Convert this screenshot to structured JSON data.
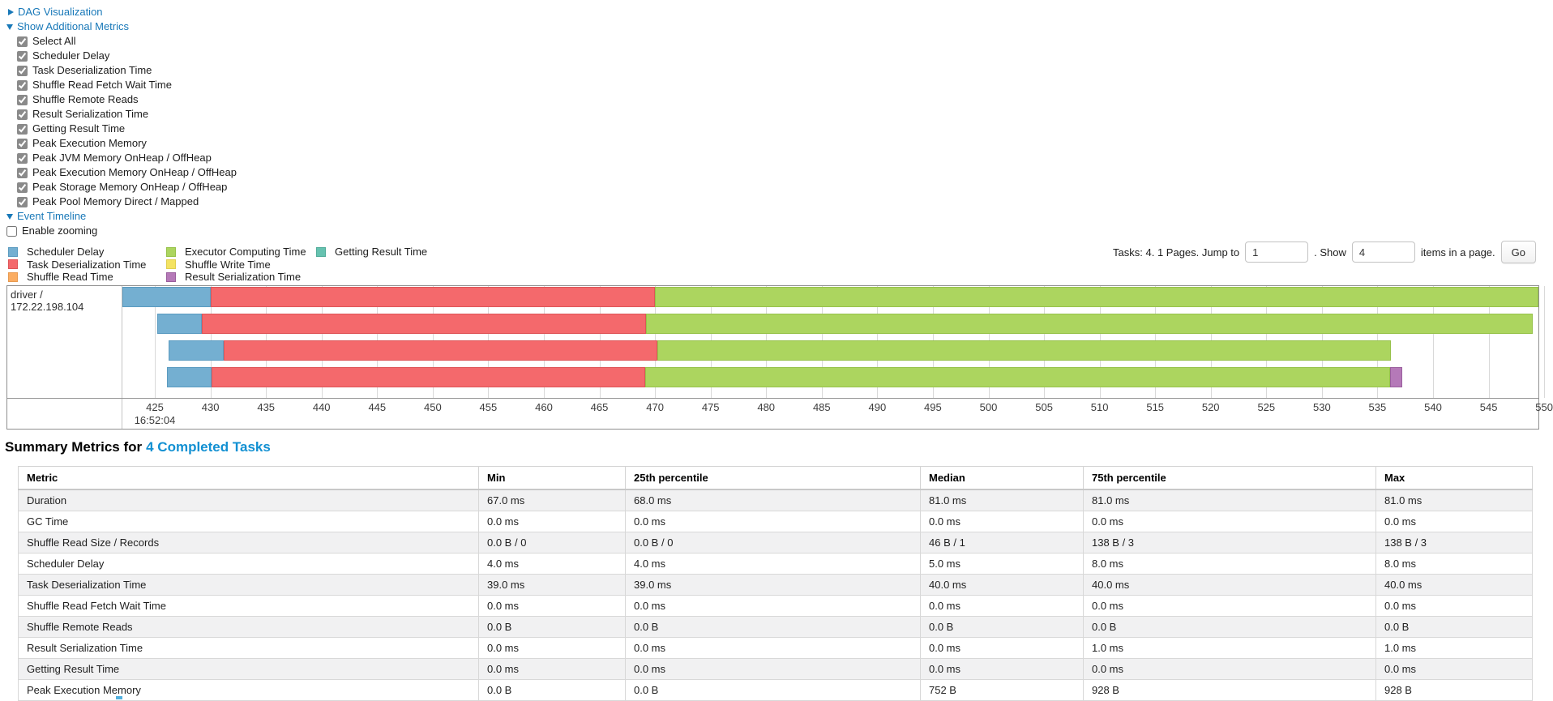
{
  "controls": {
    "dag_toggle": {
      "label": "DAG Visualization",
      "expanded": false
    },
    "metrics_toggle": {
      "label": "Show Additional Metrics",
      "expanded": true
    },
    "metric_checkboxes": [
      {
        "label": "Select All",
        "checked": true
      },
      {
        "label": "Scheduler Delay",
        "checked": true
      },
      {
        "label": "Task Deserialization Time",
        "checked": true
      },
      {
        "label": "Shuffle Read Fetch Wait Time",
        "checked": true
      },
      {
        "label": "Shuffle Remote Reads",
        "checked": true
      },
      {
        "label": "Result Serialization Time",
        "checked": true
      },
      {
        "label": "Getting Result Time",
        "checked": true
      },
      {
        "label": "Peak Execution Memory",
        "checked": true
      },
      {
        "label": "Peak JVM Memory OnHeap / OffHeap",
        "checked": true
      },
      {
        "label": "Peak Execution Memory OnHeap / OffHeap",
        "checked": true
      },
      {
        "label": "Peak Storage Memory OnHeap / OffHeap",
        "checked": true
      },
      {
        "label": "Peak Pool Memory Direct / Mapped",
        "checked": true
      }
    ],
    "timeline_toggle": {
      "label": "Event Timeline",
      "expanded": true
    },
    "enable_zooming": {
      "label": "Enable zooming",
      "checked": false
    }
  },
  "pagination": {
    "tasks_text": "Tasks: 4. 1 Pages. Jump to",
    "jump_value": "1",
    "show_text": ". Show",
    "show_value": "4",
    "items_text": "items in a page.",
    "go_label": "Go"
  },
  "chart_data": {
    "type": "timeline",
    "title": "Event Timeline",
    "group_label": "driver / 172.22.198.104",
    "axis": {
      "unit": "ms within second",
      "time_base": "16:52:04",
      "min": 422.08,
      "max": 549.48,
      "ticks": [
        425,
        430,
        435,
        440,
        445,
        450,
        455,
        460,
        465,
        470,
        475,
        480,
        485,
        490,
        495,
        500,
        505,
        510,
        515,
        520,
        525,
        530,
        535,
        540,
        545,
        550
      ]
    },
    "palette": {
      "scheduler_delay": {
        "label": "Scheduler Delay",
        "fill": "#74AFD1",
        "border": "#5B9BC0"
      },
      "task_deserialization": {
        "label": "Task Deserialization Time",
        "fill": "#F4696C",
        "border": "#DE5558"
      },
      "shuffle_read": {
        "label": "Shuffle Read Time",
        "fill": "#FBAD62",
        "border": "#E89A50"
      },
      "executor_computing": {
        "label": "Executor Computing Time",
        "fill": "#ACD55F",
        "border": "#97C24B"
      },
      "shuffle_write": {
        "label": "Shuffle Write Time",
        "fill": "#F4E362",
        "border": "#E0CF50"
      },
      "result_serialization": {
        "label": "Result Serialization Time",
        "fill": "#B579B8",
        "border": "#9A5F9D"
      },
      "getting_result": {
        "label": "Getting Result Time",
        "fill": "#66C2B0",
        "border": "#52AD9B"
      }
    },
    "legend_columns": [
      [
        "scheduler_delay",
        "task_deserialization",
        "shuffle_read"
      ],
      [
        "executor_computing",
        "shuffle_write",
        "result_serialization"
      ],
      [
        "getting_result"
      ]
    ],
    "tasks": [
      {
        "segments": [
          {
            "type": "scheduler_delay",
            "start": 422.0,
            "end": 430.0
          },
          {
            "type": "task_deserialization",
            "start": 430.0,
            "end": 470.0
          },
          {
            "type": "executor_computing",
            "start": 470.0,
            "end": 549.5
          }
        ]
      },
      {
        "segments": [
          {
            "type": "scheduler_delay",
            "start": 425.2,
            "end": 429.2
          },
          {
            "type": "task_deserialization",
            "start": 429.2,
            "end": 469.2
          },
          {
            "type": "executor_computing",
            "start": 469.2,
            "end": 549.0
          }
        ]
      },
      {
        "segments": [
          {
            "type": "scheduler_delay",
            "start": 426.2,
            "end": 431.2
          },
          {
            "type": "task_deserialization",
            "start": 431.2,
            "end": 470.2
          },
          {
            "type": "executor_computing",
            "start": 470.2,
            "end": 536.2
          }
        ]
      },
      {
        "segments": [
          {
            "type": "scheduler_delay",
            "start": 426.1,
            "end": 430.1
          },
          {
            "type": "task_deserialization",
            "start": 430.1,
            "end": 469.1
          },
          {
            "type": "executor_computing",
            "start": 469.1,
            "end": 536.1
          },
          {
            "type": "result_serialization",
            "start": 536.1,
            "end": 537.2
          }
        ]
      }
    ]
  },
  "summary": {
    "heading_prefix": "Summary Metrics for",
    "heading_link": "4 Completed Tasks",
    "table": {
      "headers": [
        "Metric",
        "Min",
        "25th percentile",
        "Median",
        "75th percentile",
        "Max"
      ],
      "rows": [
        {
          "metric": "Duration",
          "values": [
            "67.0 ms",
            "68.0 ms",
            "81.0 ms",
            "81.0 ms",
            "81.0 ms"
          ]
        },
        {
          "metric": "GC Time",
          "values": [
            "0.0 ms",
            "0.0 ms",
            "0.0 ms",
            "0.0 ms",
            "0.0 ms"
          ]
        },
        {
          "metric": "Shuffle Read Size / Records",
          "values": [
            "0.0 B / 0",
            "0.0 B / 0",
            "46 B / 1",
            "138 B / 3",
            "138 B / 3"
          ]
        },
        {
          "metric": "Scheduler Delay",
          "values": [
            "4.0 ms",
            "4.0 ms",
            "5.0 ms",
            "8.0 ms",
            "8.0 ms"
          ]
        },
        {
          "metric": "Task Deserialization Time",
          "values": [
            "39.0 ms",
            "39.0 ms",
            "40.0 ms",
            "40.0 ms",
            "40.0 ms"
          ]
        },
        {
          "metric": "Shuffle Read Fetch Wait Time",
          "values": [
            "0.0 ms",
            "0.0 ms",
            "0.0 ms",
            "0.0 ms",
            "0.0 ms"
          ]
        },
        {
          "metric": "Shuffle Remote Reads",
          "values": [
            "0.0 B",
            "0.0 B",
            "0.0 B",
            "0.0 B",
            "0.0 B"
          ]
        },
        {
          "metric": "Result Serialization Time",
          "values": [
            "0.0 ms",
            "0.0 ms",
            "0.0 ms",
            "1.0 ms",
            "1.0 ms"
          ]
        },
        {
          "metric": "Getting Result Time",
          "values": [
            "0.0 ms",
            "0.0 ms",
            "0.0 ms",
            "0.0 ms",
            "0.0 ms"
          ]
        },
        {
          "metric": "Peak Execution Memory",
          "values": [
            "0.0 B",
            "0.0 B",
            "752 B",
            "928 B",
            "928 B"
          ]
        }
      ]
    }
  }
}
